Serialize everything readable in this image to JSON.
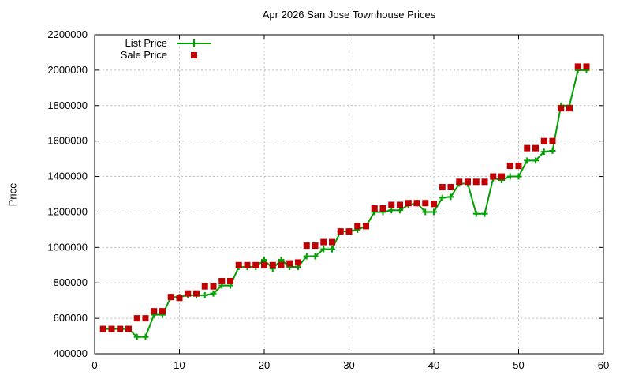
{
  "chart": {
    "title": "Apr 2026 San Jose Townhouse Prices",
    "ylabel": "Price"
  },
  "colors": {
    "list_price": "#00a000",
    "sale_price": "#c00000",
    "grid": "#bdbdbd",
    "axis": "#000000",
    "background": "#ffffff"
  },
  "chart_data": {
    "type": "line",
    "title": "Apr 2026 San Jose Townhouse Prices",
    "xlabel": "",
    "ylabel": "Price",
    "xlim": [
      0,
      60
    ],
    "ylim": [
      400000,
      2200000
    ],
    "xticks": [
      0,
      10,
      20,
      30,
      40,
      50,
      60
    ],
    "yticks": [
      400000,
      600000,
      800000,
      1000000,
      1200000,
      1400000,
      1600000,
      1800000,
      2000000,
      2200000
    ],
    "grid": true,
    "legend_position": "top-left-inside",
    "x": [
      1,
      2,
      3,
      4,
      5,
      6,
      7,
      8,
      9,
      10,
      11,
      12,
      13,
      14,
      15,
      16,
      17,
      18,
      19,
      20,
      21,
      22,
      23,
      24,
      25,
      26,
      27,
      28,
      29,
      30,
      31,
      32,
      33,
      34,
      35,
      36,
      37,
      38,
      39,
      40,
      41,
      42,
      43,
      44,
      45,
      46,
      47,
      48,
      49,
      50,
      51,
      52,
      53,
      54,
      55,
      56,
      57,
      58
    ],
    "series": [
      {
        "name": "List Price",
        "style": "line-with-plus-markers",
        "color": "#00a000",
        "values": [
          540000,
          540000,
          540000,
          540000,
          495000,
          495000,
          620000,
          620000,
          720000,
          720000,
          730000,
          730000,
          730000,
          740000,
          785000,
          785000,
          890000,
          890000,
          890000,
          930000,
          880000,
          930000,
          890000,
          890000,
          950000,
          950000,
          990000,
          990000,
          1090000,
          1090000,
          1100000,
          1120000,
          1200000,
          1200000,
          1210000,
          1210000,
          1240000,
          1250000,
          1200000,
          1200000,
          1280000,
          1285000,
          1360000,
          1360000,
          1190000,
          1190000,
          1390000,
          1380000,
          1400000,
          1400000,
          1490000,
          1490000,
          1540000,
          1545000,
          1800000,
          1800000,
          2000000,
          2000000
        ]
      },
      {
        "name": "Sale Price",
        "style": "filled-squares",
        "color": "#c00000",
        "values": [
          540000,
          540000,
          540000,
          540000,
          600000,
          600000,
          640000,
          640000,
          720000,
          715000,
          740000,
          740000,
          780000,
          780000,
          810000,
          810000,
          900000,
          900000,
          900000,
          900000,
          900000,
          900000,
          910000,
          915000,
          1010000,
          1010000,
          1030000,
          1030000,
          1090000,
          1090000,
          1120000,
          1120000,
          1220000,
          1220000,
          1240000,
          1240000,
          1250000,
          1250000,
          1250000,
          1245000,
          1340000,
          1340000,
          1370000,
          1370000,
          1370000,
          1370000,
          1400000,
          1400000,
          1460000,
          1460000,
          1560000,
          1560000,
          1600000,
          1600000,
          1785000,
          1785000,
          2020000,
          2020000
        ]
      }
    ]
  }
}
